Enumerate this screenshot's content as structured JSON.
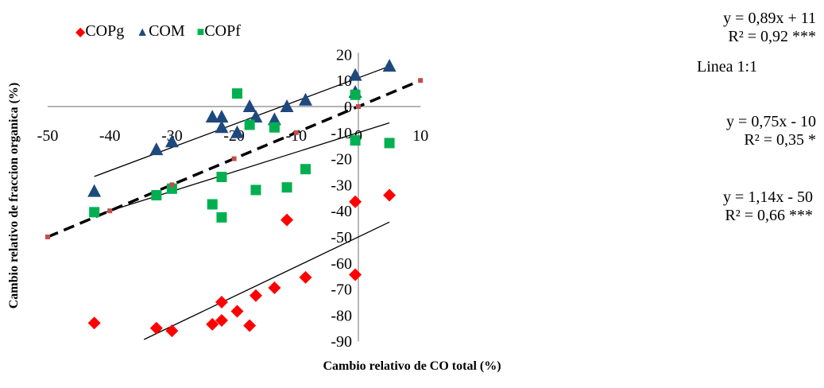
{
  "chart_data": {
    "type": "scatter",
    "xlabel": "Cambio relativo de CO total (%)",
    "ylabel": "Cambio relativo de fraccion organica (%)",
    "xlim": [
      -50,
      10
    ],
    "ylim": [
      -90,
      20
    ],
    "x_ticks": [
      "-50",
      "-40",
      "-30",
      "-20",
      "-10",
      "0",
      "10"
    ],
    "y_ticks": [
      "20",
      "10",
      "0",
      "-10",
      "-20",
      "-30",
      "-40",
      "-50",
      "-60",
      "-70",
      "-80",
      "-90"
    ],
    "legend_position": "top-left",
    "series": [
      {
        "name": "COPg",
        "color": "#ff0000",
        "marker": "diamond",
        "points": [
          [
            -42.5,
            -83
          ],
          [
            -32.5,
            -85
          ],
          [
            -30,
            -86
          ],
          [
            -23.5,
            -83.5
          ],
          [
            -22,
            -82
          ],
          [
            -22,
            -75
          ],
          [
            -19.5,
            -78.5
          ],
          [
            -17.5,
            -84
          ],
          [
            -16.5,
            -72.5
          ],
          [
            -13.5,
            -69.5
          ],
          [
            -11.5,
            -43.5
          ],
          [
            -8.5,
            -65.5
          ],
          [
            -0.5,
            -64.5
          ],
          [
            -0.5,
            -36.5
          ],
          [
            5,
            -34
          ]
        ]
      },
      {
        "name": "COM",
        "color": "#1f497d",
        "marker": "triangle",
        "points": [
          [
            -42.5,
            -32.5
          ],
          [
            -32.5,
            -16.5
          ],
          [
            -30,
            -13.5
          ],
          [
            -23.5,
            -4
          ],
          [
            -22,
            -4
          ],
          [
            -22,
            -8
          ],
          [
            -19.5,
            -10
          ],
          [
            -17.5,
            0
          ],
          [
            -16.5,
            -4
          ],
          [
            -13.5,
            -5
          ],
          [
            -11.5,
            0
          ],
          [
            -8.5,
            2.5
          ],
          [
            -0.5,
            12
          ],
          [
            -0.5,
            5.5
          ],
          [
            5,
            15.5
          ]
        ]
      },
      {
        "name": "COPf",
        "color": "#00b050",
        "marker": "square",
        "points": [
          [
            -42.5,
            -40.5
          ],
          [
            -32.5,
            -34
          ],
          [
            -30,
            -31.5
          ],
          [
            -23.5,
            -37.5
          ],
          [
            -22,
            -42.5
          ],
          [
            -22,
            -27
          ],
          [
            -19.5,
            5
          ],
          [
            -17.5,
            -7
          ],
          [
            -16.5,
            -32
          ],
          [
            -13.5,
            -8
          ],
          [
            -11.5,
            -31
          ],
          [
            -8.5,
            -24
          ],
          [
            -0.5,
            4.5
          ],
          [
            -0.5,
            -13
          ],
          [
            5,
            -14
          ]
        ]
      },
      {
        "name": "Linea 1:1",
        "color": "#c0504d",
        "marker": "square-small",
        "points": [
          [
            -50,
            -50
          ],
          [
            -40,
            -40
          ],
          [
            -30,
            -30
          ],
          [
            -20,
            -20
          ],
          [
            -10,
            -10
          ],
          [
            0,
            0
          ],
          [
            10,
            10
          ]
        ]
      }
    ],
    "annotations": [
      {
        "id": "com",
        "line1": "y = 0,89x + 11",
        "line2": "R² = 0,92 ***"
      },
      {
        "id": "copf",
        "line1": "y = 0,75x - 10",
        "line2": "R² = 0,35 *"
      },
      {
        "id": "copg",
        "line1": "y = 1,14x - 50",
        "line2": "R² = 0,66 ***"
      }
    ],
    "identity_label": "Linea 1:1"
  }
}
